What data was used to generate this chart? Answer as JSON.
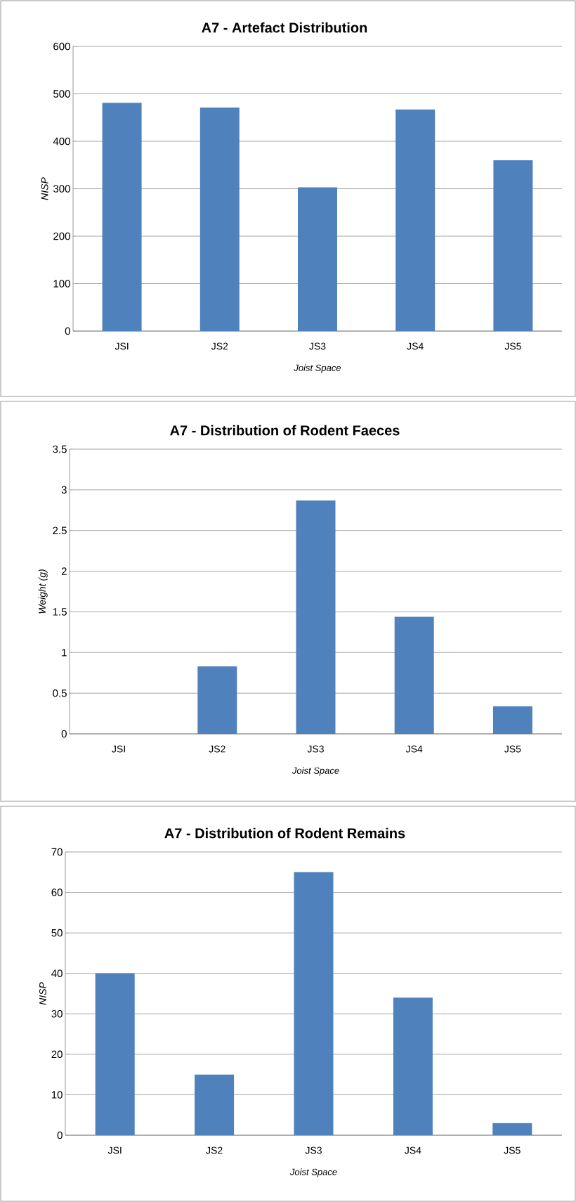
{
  "chart_data": [
    {
      "type": "bar",
      "title": "A7 - Artefact Distribution",
      "xlabel": "Joist Space",
      "ylabel": "NISP",
      "categories": [
        "JSI",
        "JS2",
        "JS3",
        "JS4",
        "JS5"
      ],
      "values": [
        481,
        471,
        303,
        467,
        360
      ],
      "color": "#4f81bd",
      "ylim": [
        0,
        600
      ],
      "yticks": [
        0,
        100,
        200,
        300,
        400,
        500,
        600
      ],
      "grid": "y"
    },
    {
      "type": "bar",
      "title": "A7 - Distribution of Rodent Faeces",
      "xlabel": "Joist Space",
      "ylabel": "Weight (g)",
      "categories": [
        "JSI",
        "JS2",
        "JS3",
        "JS4",
        "JS5"
      ],
      "values": [
        0,
        0.83,
        2.87,
        1.44,
        0.34
      ],
      "color": "#4f81bd",
      "ylim": [
        0,
        3.5
      ],
      "yticks": [
        0,
        0.5,
        1,
        1.5,
        2,
        2.5,
        3,
        3.5
      ],
      "grid": "y"
    },
    {
      "type": "bar",
      "title": "A7 - Distribution of Rodent Remains",
      "xlabel": "Joist Space",
      "ylabel": "NISP",
      "categories": [
        "JSI",
        "JS2",
        "JS3",
        "JS4",
        "JS5"
      ],
      "values": [
        40,
        15,
        65,
        34,
        3
      ],
      "color": "#4f81bd",
      "ylim": [
        0,
        70
      ],
      "yticks": [
        0,
        10,
        20,
        30,
        40,
        50,
        60,
        70
      ],
      "grid": "y"
    }
  ]
}
